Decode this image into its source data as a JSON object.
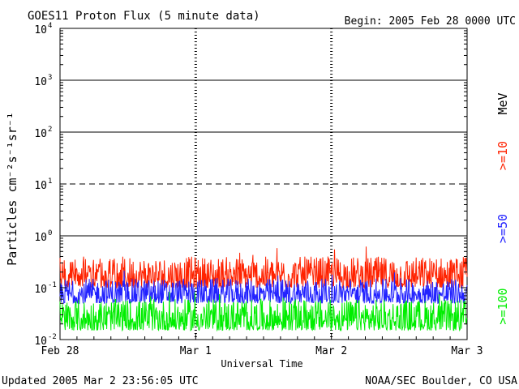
{
  "chart_data": {
    "type": "line",
    "title": "GOES11 Proton Flux (5 minute data)",
    "begin_label": "Begin: 2005 Feb 28 0000 UTC",
    "ylabel": "Particles cm⁻²s⁻¹sr⁻¹",
    "xlabel": "Universal Time",
    "y_scale": "log",
    "ylim": [
      0.01,
      10000
    ],
    "y_ticks": [
      {
        "value": 0.01,
        "base": "10",
        "exp": "-2"
      },
      {
        "value": 0.1,
        "base": "10",
        "exp": "-1"
      },
      {
        "value": 1,
        "base": "10",
        "exp": "0"
      },
      {
        "value": 10,
        "base": "10",
        "exp": "1"
      },
      {
        "value": 100,
        "base": "10",
        "exp": "2"
      },
      {
        "value": 1000,
        "base": "10",
        "exp": "3"
      },
      {
        "value": 10000,
        "base": "10",
        "exp": "4"
      }
    ],
    "x_ticks": [
      {
        "day": 0,
        "label": "Feb 28"
      },
      {
        "day": 1,
        "label": "Mar 1"
      },
      {
        "day": 2,
        "label": "Mar 2"
      },
      {
        "day": 3,
        "label": "Mar 3"
      }
    ],
    "xlim_days": [
      0,
      3
    ],
    "threshold_lines": [
      {
        "value": 1000,
        "style": "solid"
      },
      {
        "value": 100,
        "style": "solid"
      },
      {
        "value": 10,
        "style": "dashed"
      },
      {
        "value": 1,
        "style": "solid"
      }
    ],
    "legend_unit": "MeV",
    "series": [
      {
        "name": ">=10",
        "color": "#ff2200",
        "typical_range": [
          0.1,
          0.4
        ]
      },
      {
        "name": ">=50",
        "color": "#2222ff",
        "typical_range": [
          0.05,
          0.15
        ]
      },
      {
        "name": ">=100",
        "color": "#00ee00",
        "typical_range": [
          0.015,
          0.06
        ]
      }
    ],
    "grid": true
  },
  "footer": {
    "updated": "Updated 2005 Mar  2 23:56:05 UTC",
    "source": "NOAA/SEC Boulder, CO USA"
  }
}
